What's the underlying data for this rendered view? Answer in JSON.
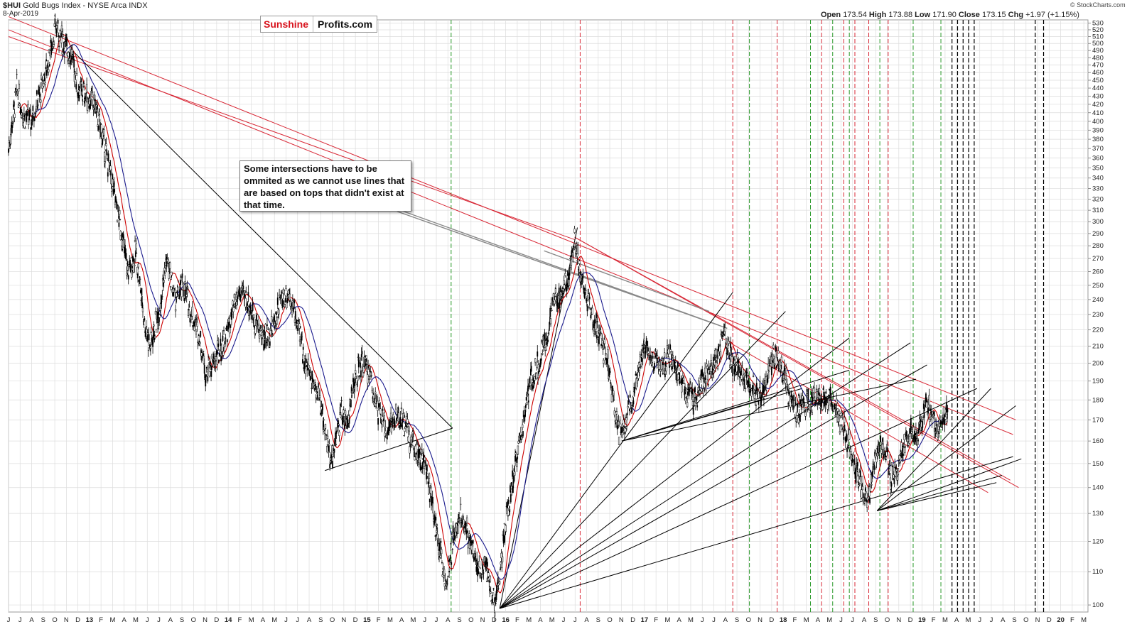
{
  "header": {
    "symbol": "$HUI",
    "name": "Gold Bugs Index - NYSE Arca INDX",
    "date": "8-Apr-2019",
    "ohlc": {
      "open_label": "Open",
      "open": "173.54",
      "high_label": "High",
      "high": "173.88",
      "low_label": "Low",
      "low": "171.90",
      "close_label": "Close",
      "close": "173.15",
      "chg_label": "Chg",
      "chg": "+1.97 (+1.15%)"
    },
    "watermark": "© StockCharts.com"
  },
  "brand": {
    "part1": "Sunshine",
    "part2": "Profits.com"
  },
  "annotation": "Some intersections have to be ommited as we cannot use lines that are based on tops that didn't exist at that time.",
  "colors": {
    "candle": "#000000",
    "ma_fast": "#cc0000",
    "ma_slow": "#1a1a8c",
    "red_line": "#d82836",
    "green_line": "#2a9a2a",
    "grid": "#dcdcdc"
  },
  "chart_data": {
    "type": "line",
    "yscale": "log",
    "ylim": [
      98,
      535
    ],
    "xlim": [
      2012.5,
      2020.28
    ],
    "y_ticks": [
      100,
      110,
      120,
      130,
      140,
      150,
      160,
      170,
      180,
      190,
      200,
      210,
      220,
      230,
      240,
      250,
      260,
      270,
      280,
      290,
      300,
      310,
      320,
      330,
      340,
      350,
      360,
      370,
      380,
      390,
      400,
      410,
      420,
      430,
      440,
      450,
      460,
      470,
      480,
      490,
      500,
      510,
      520,
      530
    ],
    "x_ticks": [
      "J",
      "J",
      "A",
      "S",
      "O",
      "N",
      "D",
      "13",
      "F",
      "M",
      "A",
      "M",
      "J",
      "J",
      "A",
      "S",
      "O",
      "N",
      "D",
      "14",
      "F",
      "M",
      "A",
      "M",
      "J",
      "J",
      "A",
      "S",
      "O",
      "N",
      "D",
      "15",
      "F",
      "M",
      "A",
      "M",
      "J",
      "J",
      "A",
      "S",
      "O",
      "N",
      "D",
      "16",
      "F",
      "M",
      "A",
      "M",
      "J",
      "J",
      "A",
      "S",
      "O",
      "N",
      "D",
      "17",
      "F",
      "M",
      "A",
      "M",
      "J",
      "J",
      "A",
      "S",
      "O",
      "N",
      "D",
      "18",
      "F",
      "M",
      "A",
      "M",
      "J",
      "J",
      "A",
      "S",
      "O",
      "N",
      "D",
      "19",
      "F",
      "M",
      "A",
      "M",
      "J",
      "J",
      "A",
      "S",
      "O",
      "N",
      "D",
      "20",
      "F",
      "M"
    ],
    "price_path": [
      [
        2012.5,
        370
      ],
      [
        2012.56,
        440
      ],
      [
        2012.6,
        410
      ],
      [
        2012.66,
        400
      ],
      [
        2012.72,
        430
      ],
      [
        2012.78,
        470
      ],
      [
        2012.84,
        525
      ],
      [
        2012.9,
        500
      ],
      [
        2012.96,
        480
      ],
      [
        2013.0,
        440
      ],
      [
        2013.06,
        430
      ],
      [
        2013.12,
        420
      ],
      [
        2013.18,
        380
      ],
      [
        2013.24,
        340
      ],
      [
        2013.3,
        300
      ],
      [
        2013.36,
        260
      ],
      [
        2013.42,
        275
      ],
      [
        2013.48,
        225
      ],
      [
        2013.52,
        210
      ],
      [
        2013.58,
        230
      ],
      [
        2013.64,
        270
      ],
      [
        2013.7,
        240
      ],
      [
        2013.76,
        250
      ],
      [
        2013.82,
        230
      ],
      [
        2013.88,
        215
      ],
      [
        2013.92,
        195
      ],
      [
        2013.98,
        200
      ],
      [
        2014.04,
        210
      ],
      [
        2014.1,
        225
      ],
      [
        2014.16,
        245
      ],
      [
        2014.22,
        240
      ],
      [
        2014.28,
        225
      ],
      [
        2014.34,
        215
      ],
      [
        2014.4,
        220
      ],
      [
        2014.46,
        240
      ],
      [
        2014.52,
        245
      ],
      [
        2014.58,
        225
      ],
      [
        2014.64,
        200
      ],
      [
        2014.7,
        190
      ],
      [
        2014.76,
        175
      ],
      [
        2014.82,
        150
      ],
      [
        2014.86,
        160
      ],
      [
        2014.9,
        175
      ],
      [
        2014.94,
        168
      ],
      [
        2014.98,
        185
      ],
      [
        2015.04,
        200
      ],
      [
        2015.1,
        195
      ],
      [
        2015.16,
        175
      ],
      [
        2015.22,
        165
      ],
      [
        2015.28,
        170
      ],
      [
        2015.34,
        170
      ],
      [
        2015.4,
        160
      ],
      [
        2015.46,
        155
      ],
      [
        2015.52,
        145
      ],
      [
        2015.58,
        125
      ],
      [
        2015.62,
        115
      ],
      [
        2015.66,
        105
      ],
      [
        2015.7,
        120
      ],
      [
        2015.76,
        130
      ],
      [
        2015.8,
        125
      ],
      [
        2015.86,
        115
      ],
      [
        2015.9,
        110
      ],
      [
        2015.94,
        112
      ],
      [
        2016.0,
        100
      ],
      [
        2016.04,
        108
      ],
      [
        2016.08,
        125
      ],
      [
        2016.14,
        145
      ],
      [
        2016.2,
        165
      ],
      [
        2016.26,
        190
      ],
      [
        2016.32,
        200
      ],
      [
        2016.38,
        215
      ],
      [
        2016.42,
        235
      ],
      [
        2016.48,
        245
      ],
      [
        2016.54,
        260
      ],
      [
        2016.58,
        285
      ],
      [
        2016.62,
        260
      ],
      [
        2016.66,
        245
      ],
      [
        2016.7,
        230
      ],
      [
        2016.76,
        215
      ],
      [
        2016.82,
        200
      ],
      [
        2016.86,
        180
      ],
      [
        2016.9,
        165
      ],
      [
        2016.96,
        170
      ],
      [
        2017.02,
        190
      ],
      [
        2017.08,
        210
      ],
      [
        2017.14,
        205
      ],
      [
        2017.2,
        195
      ],
      [
        2017.26,
        205
      ],
      [
        2017.32,
        195
      ],
      [
        2017.38,
        185
      ],
      [
        2017.44,
        180
      ],
      [
        2017.5,
        190
      ],
      [
        2017.56,
        195
      ],
      [
        2017.62,
        205
      ],
      [
        2017.66,
        215
      ],
      [
        2017.72,
        200
      ],
      [
        2017.78,
        195
      ],
      [
        2017.84,
        190
      ],
      [
        2017.9,
        180
      ],
      [
        2017.96,
        190
      ],
      [
        2018.02,
        205
      ],
      [
        2018.06,
        200
      ],
      [
        2018.12,
        185
      ],
      [
        2018.18,
        175
      ],
      [
        2018.24,
        178
      ],
      [
        2018.3,
        180
      ],
      [
        2018.36,
        182
      ],
      [
        2018.42,
        180
      ],
      [
        2018.46,
        175
      ],
      [
        2018.52,
        165
      ],
      [
        2018.58,
        155
      ],
      [
        2018.62,
        145
      ],
      [
        2018.66,
        138
      ],
      [
        2018.7,
        135
      ],
      [
        2018.74,
        150
      ],
      [
        2018.8,
        160
      ],
      [
        2018.86,
        145
      ],
      [
        2018.9,
        145
      ],
      [
        2018.94,
        155
      ],
      [
        2019.0,
        165
      ],
      [
        2019.04,
        160
      ],
      [
        2019.08,
        170
      ],
      [
        2019.12,
        178
      ],
      [
        2019.16,
        170
      ],
      [
        2019.2,
        165
      ],
      [
        2019.24,
        172
      ],
      [
        2019.27,
        173
      ]
    ]
  }
}
